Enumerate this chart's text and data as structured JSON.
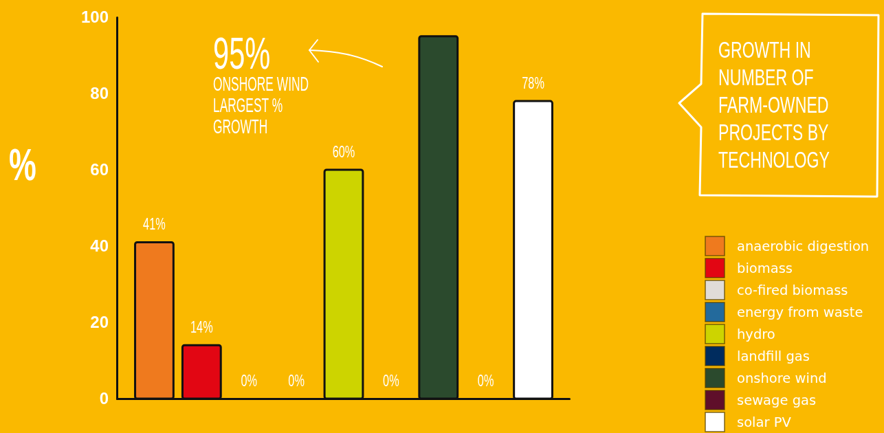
{
  "chart_data": {
    "type": "bar",
    "title": "GROWTH IN NUMBER OF FARM-OWNED PROJECTS BY TECHNOLOGY",
    "ylabel": "%",
    "categories": [
      null,
      null,
      null,
      null,
      null,
      null,
      null,
      null,
      null
    ],
    "series": [
      {
        "name": "anaerobic digestion",
        "color": "#ef7a1e",
        "values": [
          41,
          null,
          null,
          null,
          null,
          null,
          null,
          null,
          null
        ],
        "value_labels": [
          "41%",
          null,
          null,
          null,
          null,
          null,
          null,
          null,
          null
        ]
      },
      {
        "name": "biomass",
        "color": "#e20613",
        "values": [
          null,
          14,
          null,
          null,
          null,
          null,
          null,
          null,
          null
        ],
        "value_labels": [
          null,
          "14%",
          null,
          null,
          null,
          null,
          null,
          null,
          null
        ]
      },
      {
        "name": "co-fired biomass",
        "color": "#e0dcd8",
        "values": [
          null,
          null,
          0,
          null,
          null,
          null,
          null,
          null,
          null
        ],
        "value_labels": [
          null,
          null,
          "0%",
          null,
          null,
          null,
          null,
          null,
          null
        ]
      },
      {
        "name": "energy from waste",
        "color": "#236a9c",
        "values": [
          null,
          null,
          null,
          0,
          null,
          null,
          null,
          null,
          null
        ],
        "value_labels": [
          null,
          null,
          null,
          "0%",
          null,
          null,
          null,
          null,
          null
        ]
      },
      {
        "name": "hydro",
        "color": "#cdd400",
        "values": [
          null,
          null,
          null,
          null,
          60,
          null,
          null,
          null,
          null
        ],
        "value_labels": [
          null,
          null,
          null,
          null,
          "60%",
          null,
          null,
          null,
          null
        ]
      },
      {
        "name": "landfill gas",
        "color": "#002c5e",
        "values": [
          null,
          null,
          null,
          null,
          null,
          0,
          null,
          null,
          null
        ],
        "value_labels": [
          null,
          null,
          null,
          null,
          null,
          "0%",
          null,
          null,
          null
        ]
      },
      {
        "name": "onshore wind",
        "color": "#2b4a2d",
        "values": [
          null,
          null,
          null,
          null,
          null,
          null,
          95,
          null,
          null
        ]
      },
      {
        "name": "sewage gas",
        "color": "#5f0f2a",
        "values": [
          null,
          null,
          null,
          null,
          null,
          null,
          null,
          0,
          null
        ],
        "value_labels": [
          null,
          null,
          null,
          null,
          null,
          null,
          null,
          "0%",
          null
        ]
      },
      {
        "name": "solar PV",
        "color": "#ffffff",
        "values": [
          null,
          null,
          null,
          null,
          null,
          null,
          null,
          null,
          78
        ],
        "value_labels": [
          null,
          null,
          null,
          null,
          null,
          null,
          null,
          null,
          "78%"
        ]
      }
    ],
    "stacked": true,
    "ylim": [
      0,
      100
    ],
    "yticks": [
      0,
      20,
      40,
      60,
      80,
      100
    ],
    "legend": "right",
    "annotations": [
      "95%",
      "ONSHORE WIND LARGEST % GROWTH"
    ]
  }
}
